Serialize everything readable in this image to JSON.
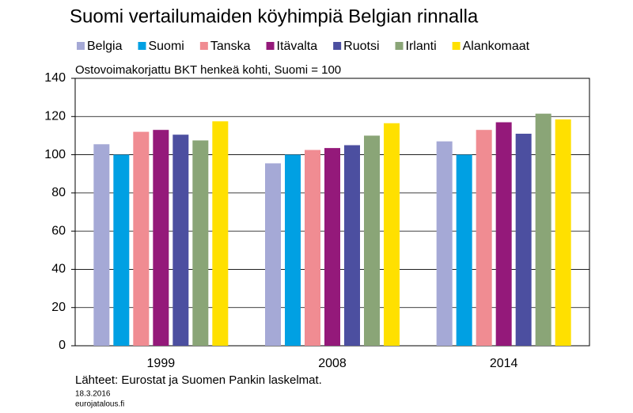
{
  "chart_data": {
    "type": "bar",
    "title": "Suomi vertailumaiden köyhimpiä Belgian rinnalla",
    "subtitle": "Ostovoimakorjattu BKT henkeä kohti, Suomi = 100",
    "source": "Lähteet: Eurostat ja Suomen Pankin laskelmat.",
    "date": "18.3.2016",
    "site": "eurojatalous.fi",
    "categories": [
      "1999",
      "2008",
      "2014"
    ],
    "series": [
      {
        "name": "Belgia",
        "color": "#a5a9d6",
        "values": [
          105.5,
          95.5,
          107
        ]
      },
      {
        "name": "Suomi",
        "color": "#00a0e3",
        "values": [
          100,
          100,
          100
        ]
      },
      {
        "name": "Tanska",
        "color": "#f08c92",
        "values": [
          112,
          102.5,
          113
        ]
      },
      {
        "name": "Itävalta",
        "color": "#94197a",
        "values": [
          113,
          103.5,
          117
        ]
      },
      {
        "name": "Ruotsi",
        "color": "#4c4fa0",
        "values": [
          110.5,
          105,
          111
        ]
      },
      {
        "name": "Irlanti",
        "color": "#8aa577",
        "values": [
          107.5,
          110,
          121.5
        ]
      },
      {
        "name": "Alankomaat",
        "color": "#ffe000",
        "values": [
          117.5,
          116.5,
          118.5
        ]
      }
    ],
    "ylim": [
      0,
      140
    ],
    "yticks": [
      0,
      20,
      40,
      60,
      80,
      100,
      120,
      140
    ],
    "grid": true
  }
}
